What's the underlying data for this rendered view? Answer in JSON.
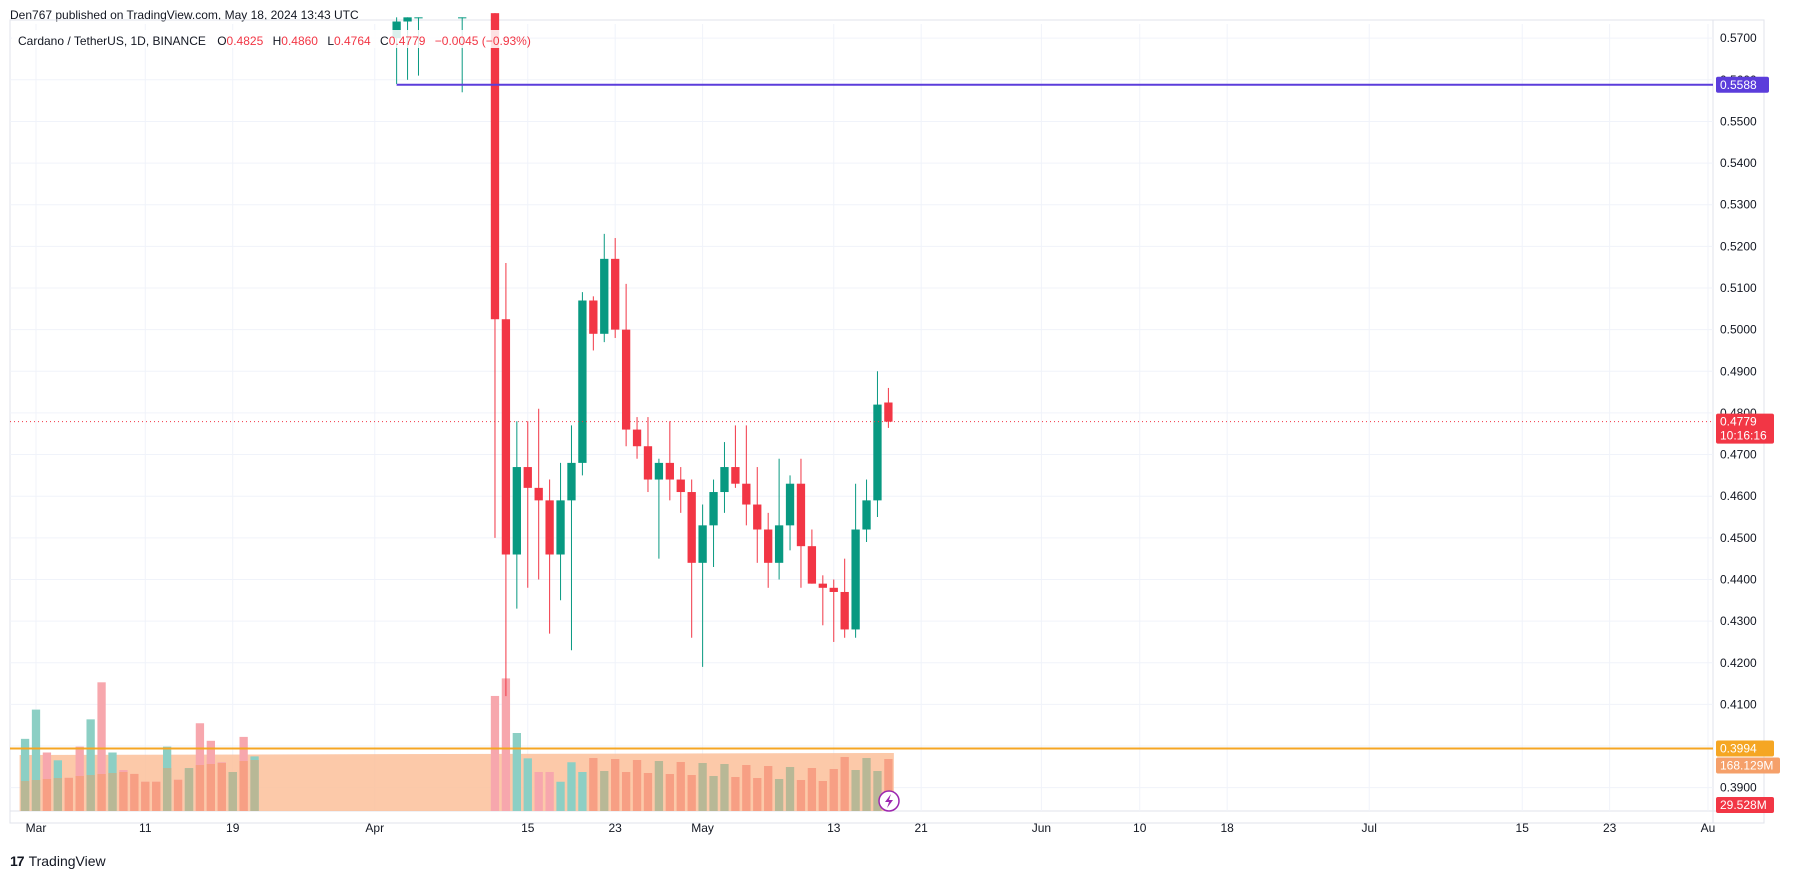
{
  "header": {
    "published": "Den767 published on TradingView.com, May 18, 2024 13:43 UTC"
  },
  "legend": {
    "symbol": "Cardano / TetherUS, 1D, BINANCE",
    "o_label": "O",
    "o_value": "0.4825",
    "h_label": "H",
    "h_value": "0.4860",
    "l_label": "L",
    "l_value": "0.4764",
    "c_label": "C",
    "c_value": "0.4779",
    "change": "−0.0045 (−0.93%)"
  },
  "footer": {
    "brand": "TradingView",
    "logo_icon": "tradingview-logo-icon"
  },
  "colors": {
    "up": "#089981",
    "down": "#f23645",
    "up_vol": "#8ccfc4",
    "down_vol": "#f7a7ad",
    "purple_line": "#5b3ddb",
    "orange_line": "#f5a623",
    "vprofile": "#fcbf9a"
  },
  "chart_data": {
    "type": "candlestick",
    "price_axis": {
      "ticks": [
        "0.5700",
        "0.5600",
        "0.5500",
        "0.5400",
        "0.5300",
        "0.5200",
        "0.5100",
        "0.5000",
        "0.4900",
        "0.4800",
        "0.4700",
        "0.4600",
        "0.4500",
        "0.4400",
        "0.4300",
        "0.4200",
        "0.4100",
        "0.4000",
        "0.3900"
      ],
      "range": [
        0.3844,
        0.5734
      ]
    },
    "time_axis": {
      "labels": [
        {
          "text": "Mar",
          "date": "2024-03-01"
        },
        {
          "text": "11",
          "date": "2024-03-11"
        },
        {
          "text": "19",
          "date": "2024-03-19"
        },
        {
          "text": "Apr",
          "date": "2024-04-01"
        },
        {
          "text": "15",
          "date": "2024-04-15"
        },
        {
          "text": "23",
          "date": "2024-04-23"
        },
        {
          "text": "May",
          "date": "2024-05-01"
        },
        {
          "text": "13",
          "date": "2024-05-13"
        },
        {
          "text": "21",
          "date": "2024-05-21"
        },
        {
          "text": "Jun",
          "date": "2024-06-01"
        },
        {
          "text": "10",
          "date": "2024-06-10"
        },
        {
          "text": "18",
          "date": "2024-06-18"
        },
        {
          "text": "Jul",
          "date": "2024-07-01"
        },
        {
          "text": "15",
          "date": "2024-07-15"
        },
        {
          "text": "23",
          "date": "2024-07-23"
        },
        {
          "text": "Au",
          "date": "2024-08-01"
        }
      ]
    },
    "candles": [
      {
        "date": "2024-04-03",
        "o": 0.57,
        "h": 0.575,
        "l": 0.559,
        "c": 0.574
      },
      {
        "date": "2024-04-04",
        "o": 0.574,
        "h": 0.575,
        "l": 0.56,
        "c": 0.575
      },
      {
        "date": "2024-04-05",
        "o": 0.575,
        "h": 0.575,
        "l": 0.561,
        "c": 0.575
      },
      {
        "date": "2024-04-09",
        "o": 0.575,
        "h": 0.575,
        "l": 0.557,
        "c": 0.575
      },
      {
        "date": "2024-04-12",
        "o": 0.576,
        "h": 0.576,
        "l": 0.45,
        "c": 0.5025
      },
      {
        "date": "2024-04-13",
        "o": 0.5025,
        "h": 0.516,
        "l": 0.412,
        "c": 0.446
      },
      {
        "date": "2024-04-14",
        "o": 0.446,
        "h": 0.478,
        "l": 0.433,
        "c": 0.467
      },
      {
        "date": "2024-04-15",
        "o": 0.467,
        "h": 0.478,
        "l": 0.438,
        "c": 0.462
      },
      {
        "date": "2024-04-16",
        "o": 0.462,
        "h": 0.481,
        "l": 0.44,
        "c": 0.459
      },
      {
        "date": "2024-04-17",
        "o": 0.459,
        "h": 0.464,
        "l": 0.427,
        "c": 0.446
      },
      {
        "date": "2024-04-18",
        "o": 0.446,
        "h": 0.468,
        "l": 0.435,
        "c": 0.459
      },
      {
        "date": "2024-04-19",
        "o": 0.459,
        "h": 0.477,
        "l": 0.423,
        "c": 0.468
      },
      {
        "date": "2024-04-20",
        "o": 0.468,
        "h": 0.509,
        "l": 0.465,
        "c": 0.507
      },
      {
        "date": "2024-04-21",
        "o": 0.507,
        "h": 0.508,
        "l": 0.495,
        "c": 0.499
      },
      {
        "date": "2024-04-22",
        "o": 0.499,
        "h": 0.523,
        "l": 0.497,
        "c": 0.517
      },
      {
        "date": "2024-04-23",
        "o": 0.517,
        "h": 0.522,
        "l": 0.498,
        "c": 0.5
      },
      {
        "date": "2024-04-24",
        "o": 0.5,
        "h": 0.511,
        "l": 0.472,
        "c": 0.476
      },
      {
        "date": "2024-04-25",
        "o": 0.476,
        "h": 0.479,
        "l": 0.469,
        "c": 0.472
      },
      {
        "date": "2024-04-26",
        "o": 0.472,
        "h": 0.479,
        "l": 0.461,
        "c": 0.464
      },
      {
        "date": "2024-04-27",
        "o": 0.464,
        "h": 0.469,
        "l": 0.445,
        "c": 0.468
      },
      {
        "date": "2024-04-28",
        "o": 0.468,
        "h": 0.478,
        "l": 0.459,
        "c": 0.464
      },
      {
        "date": "2024-04-29",
        "o": 0.464,
        "h": 0.467,
        "l": 0.456,
        "c": 0.461
      },
      {
        "date": "2024-04-30",
        "o": 0.461,
        "h": 0.464,
        "l": 0.426,
        "c": 0.444
      },
      {
        "date": "2024-05-01",
        "o": 0.444,
        "h": 0.458,
        "l": 0.419,
        "c": 0.453
      },
      {
        "date": "2024-05-02",
        "o": 0.453,
        "h": 0.464,
        "l": 0.443,
        "c": 0.461
      },
      {
        "date": "2024-05-03",
        "o": 0.461,
        "h": 0.473,
        "l": 0.456,
        "c": 0.467
      },
      {
        "date": "2024-05-04",
        "o": 0.467,
        "h": 0.477,
        "l": 0.462,
        "c": 0.463
      },
      {
        "date": "2024-05-05",
        "o": 0.463,
        "h": 0.477,
        "l": 0.453,
        "c": 0.458
      },
      {
        "date": "2024-05-06",
        "o": 0.458,
        "h": 0.467,
        "l": 0.444,
        "c": 0.452
      },
      {
        "date": "2024-05-07",
        "o": 0.452,
        "h": 0.456,
        "l": 0.438,
        "c": 0.444
      },
      {
        "date": "2024-05-08",
        "o": 0.444,
        "h": 0.469,
        "l": 0.44,
        "c": 0.453
      },
      {
        "date": "2024-05-09",
        "o": 0.453,
        "h": 0.465,
        "l": 0.447,
        "c": 0.463
      },
      {
        "date": "2024-05-10",
        "o": 0.463,
        "h": 0.469,
        "l": 0.438,
        "c": 0.448
      },
      {
        "date": "2024-05-11",
        "o": 0.448,
        "h": 0.452,
        "l": 0.439,
        "c": 0.439
      },
      {
        "date": "2024-05-12",
        "o": 0.439,
        "h": 0.441,
        "l": 0.429,
        "c": 0.438
      },
      {
        "date": "2024-05-13",
        "o": 0.438,
        "h": 0.44,
        "l": 0.425,
        "c": 0.437
      },
      {
        "date": "2024-05-14",
        "o": 0.437,
        "h": 0.445,
        "l": 0.426,
        "c": 0.428
      },
      {
        "date": "2024-05-15",
        "o": 0.428,
        "h": 0.463,
        "l": 0.426,
        "c": 0.452
      },
      {
        "date": "2024-05-16",
        "o": 0.452,
        "h": 0.464,
        "l": 0.449,
        "c": 0.459
      },
      {
        "date": "2024-05-17",
        "o": 0.459,
        "h": 0.49,
        "l": 0.455,
        "c": 0.482
      },
      {
        "date": "2024-05-18",
        "o": 0.4825,
        "h": 0.486,
        "l": 0.4764,
        "c": 0.4779
      }
    ],
    "volume": {
      "early_bars": [
        {
          "date": "2024-02-29",
          "v": 0.37,
          "up": true
        },
        {
          "date": "2024-03-01",
          "v": 0.52,
          "up": true
        },
        {
          "date": "2024-03-02",
          "v": 0.3,
          "up": false
        },
        {
          "date": "2024-03-03",
          "v": 0.26,
          "up": true
        },
        {
          "date": "2024-03-04",
          "v": 0.17,
          "up": false
        },
        {
          "date": "2024-03-05",
          "v": 0.33,
          "up": false
        },
        {
          "date": "2024-03-06",
          "v": 0.47,
          "up": true
        },
        {
          "date": "2024-03-07",
          "v": 0.66,
          "up": false
        },
        {
          "date": "2024-03-08",
          "v": 0.3,
          "up": true
        },
        {
          "date": "2024-03-09",
          "v": 0.21,
          "up": false
        },
        {
          "date": "2024-03-10",
          "v": 0.19,
          "up": false
        },
        {
          "date": "2024-03-11",
          "v": 0.15,
          "up": false
        },
        {
          "date": "2024-03-12",
          "v": 0.15,
          "up": false
        },
        {
          "date": "2024-03-13",
          "v": 0.33,
          "up": true
        },
        {
          "date": "2024-03-14",
          "v": 0.16,
          "up": false
        },
        {
          "date": "2024-03-15",
          "v": 0.22,
          "up": true
        },
        {
          "date": "2024-03-16",
          "v": 0.45,
          "up": false
        },
        {
          "date": "2024-03-17",
          "v": 0.36,
          "up": false
        },
        {
          "date": "2024-03-18",
          "v": 0.25,
          "up": false
        },
        {
          "date": "2024-03-19",
          "v": 0.2,
          "up": true
        },
        {
          "date": "2024-03-20",
          "v": 0.38,
          "up": false
        },
        {
          "date": "2024-03-21",
          "v": 0.28,
          "up": true
        }
      ],
      "later_bars": [
        {
          "date": "2024-04-12",
          "v": 0.59,
          "up": false
        },
        {
          "date": "2024-04-13",
          "v": 0.68,
          "up": false
        },
        {
          "date": "2024-04-14",
          "v": 0.4,
          "up": true
        },
        {
          "date": "2024-04-15",
          "v": 0.27,
          "up": true
        },
        {
          "date": "2024-04-16",
          "v": 0.2,
          "up": false
        },
        {
          "date": "2024-04-17",
          "v": 0.2,
          "up": false
        },
        {
          "date": "2024-04-18",
          "v": 0.15,
          "up": true
        },
        {
          "date": "2024-04-19",
          "v": 0.25,
          "up": true
        },
        {
          "date": "2024-04-20",
          "v": 0.2,
          "up": true
        }
      ],
      "profile_label": "168.129M",
      "last_label": "29.528M"
    },
    "horizontal_lines": [
      {
        "name": "resistance",
        "price": 0.5588,
        "label": "0.5588",
        "start_date": "2024-04-03"
      },
      {
        "name": "support",
        "price": 0.3994,
        "label": "0.3994"
      }
    ],
    "last_price": {
      "label": "0.4779",
      "countdown": "10:16:16",
      "price": 0.4779
    }
  }
}
